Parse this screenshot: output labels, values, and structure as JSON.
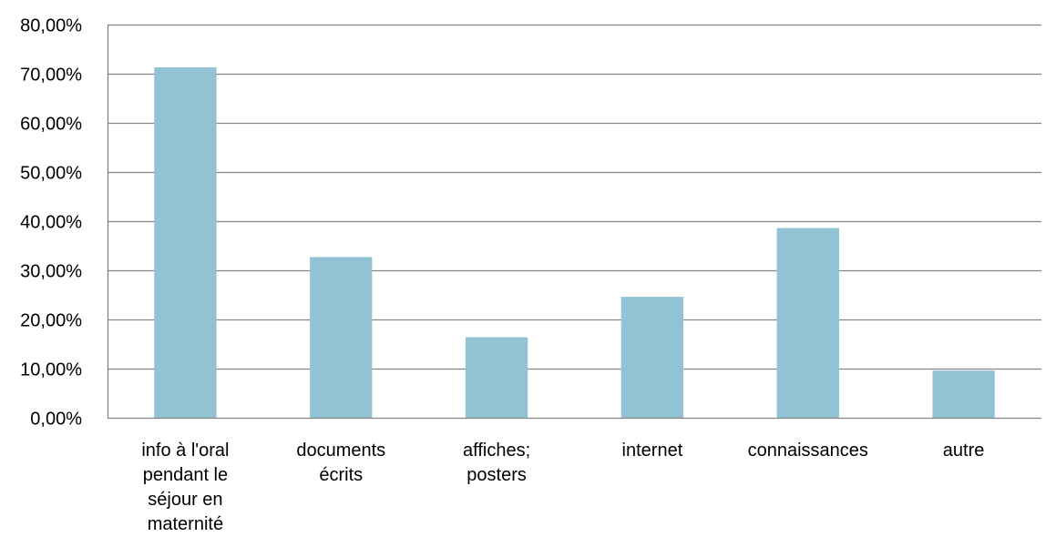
{
  "chart_data": {
    "type": "bar",
    "categories": [
      [
        "info à l'oral",
        "pendant le",
        "séjour en",
        "maternité"
      ],
      [
        "documents",
        "écrits"
      ],
      [
        "affiches;",
        "posters"
      ],
      [
        "internet"
      ],
      [
        "connaissances"
      ],
      [
        "autre"
      ]
    ],
    "values": [
      71.3,
      32.7,
      16.4,
      24.6,
      38.6,
      9.6
    ],
    "ylim": [
      0,
      80
    ],
    "y_ticks": [
      "0,00%",
      "10,00%",
      "20,00%",
      "30,00%",
      "40,00%",
      "50,00%",
      "60,00%",
      "70,00%",
      "80,00%"
    ],
    "grid": true,
    "legend": "none",
    "colors": {
      "bar": "#92c3d4",
      "grid": "#868686",
      "axis": "#868686"
    }
  }
}
